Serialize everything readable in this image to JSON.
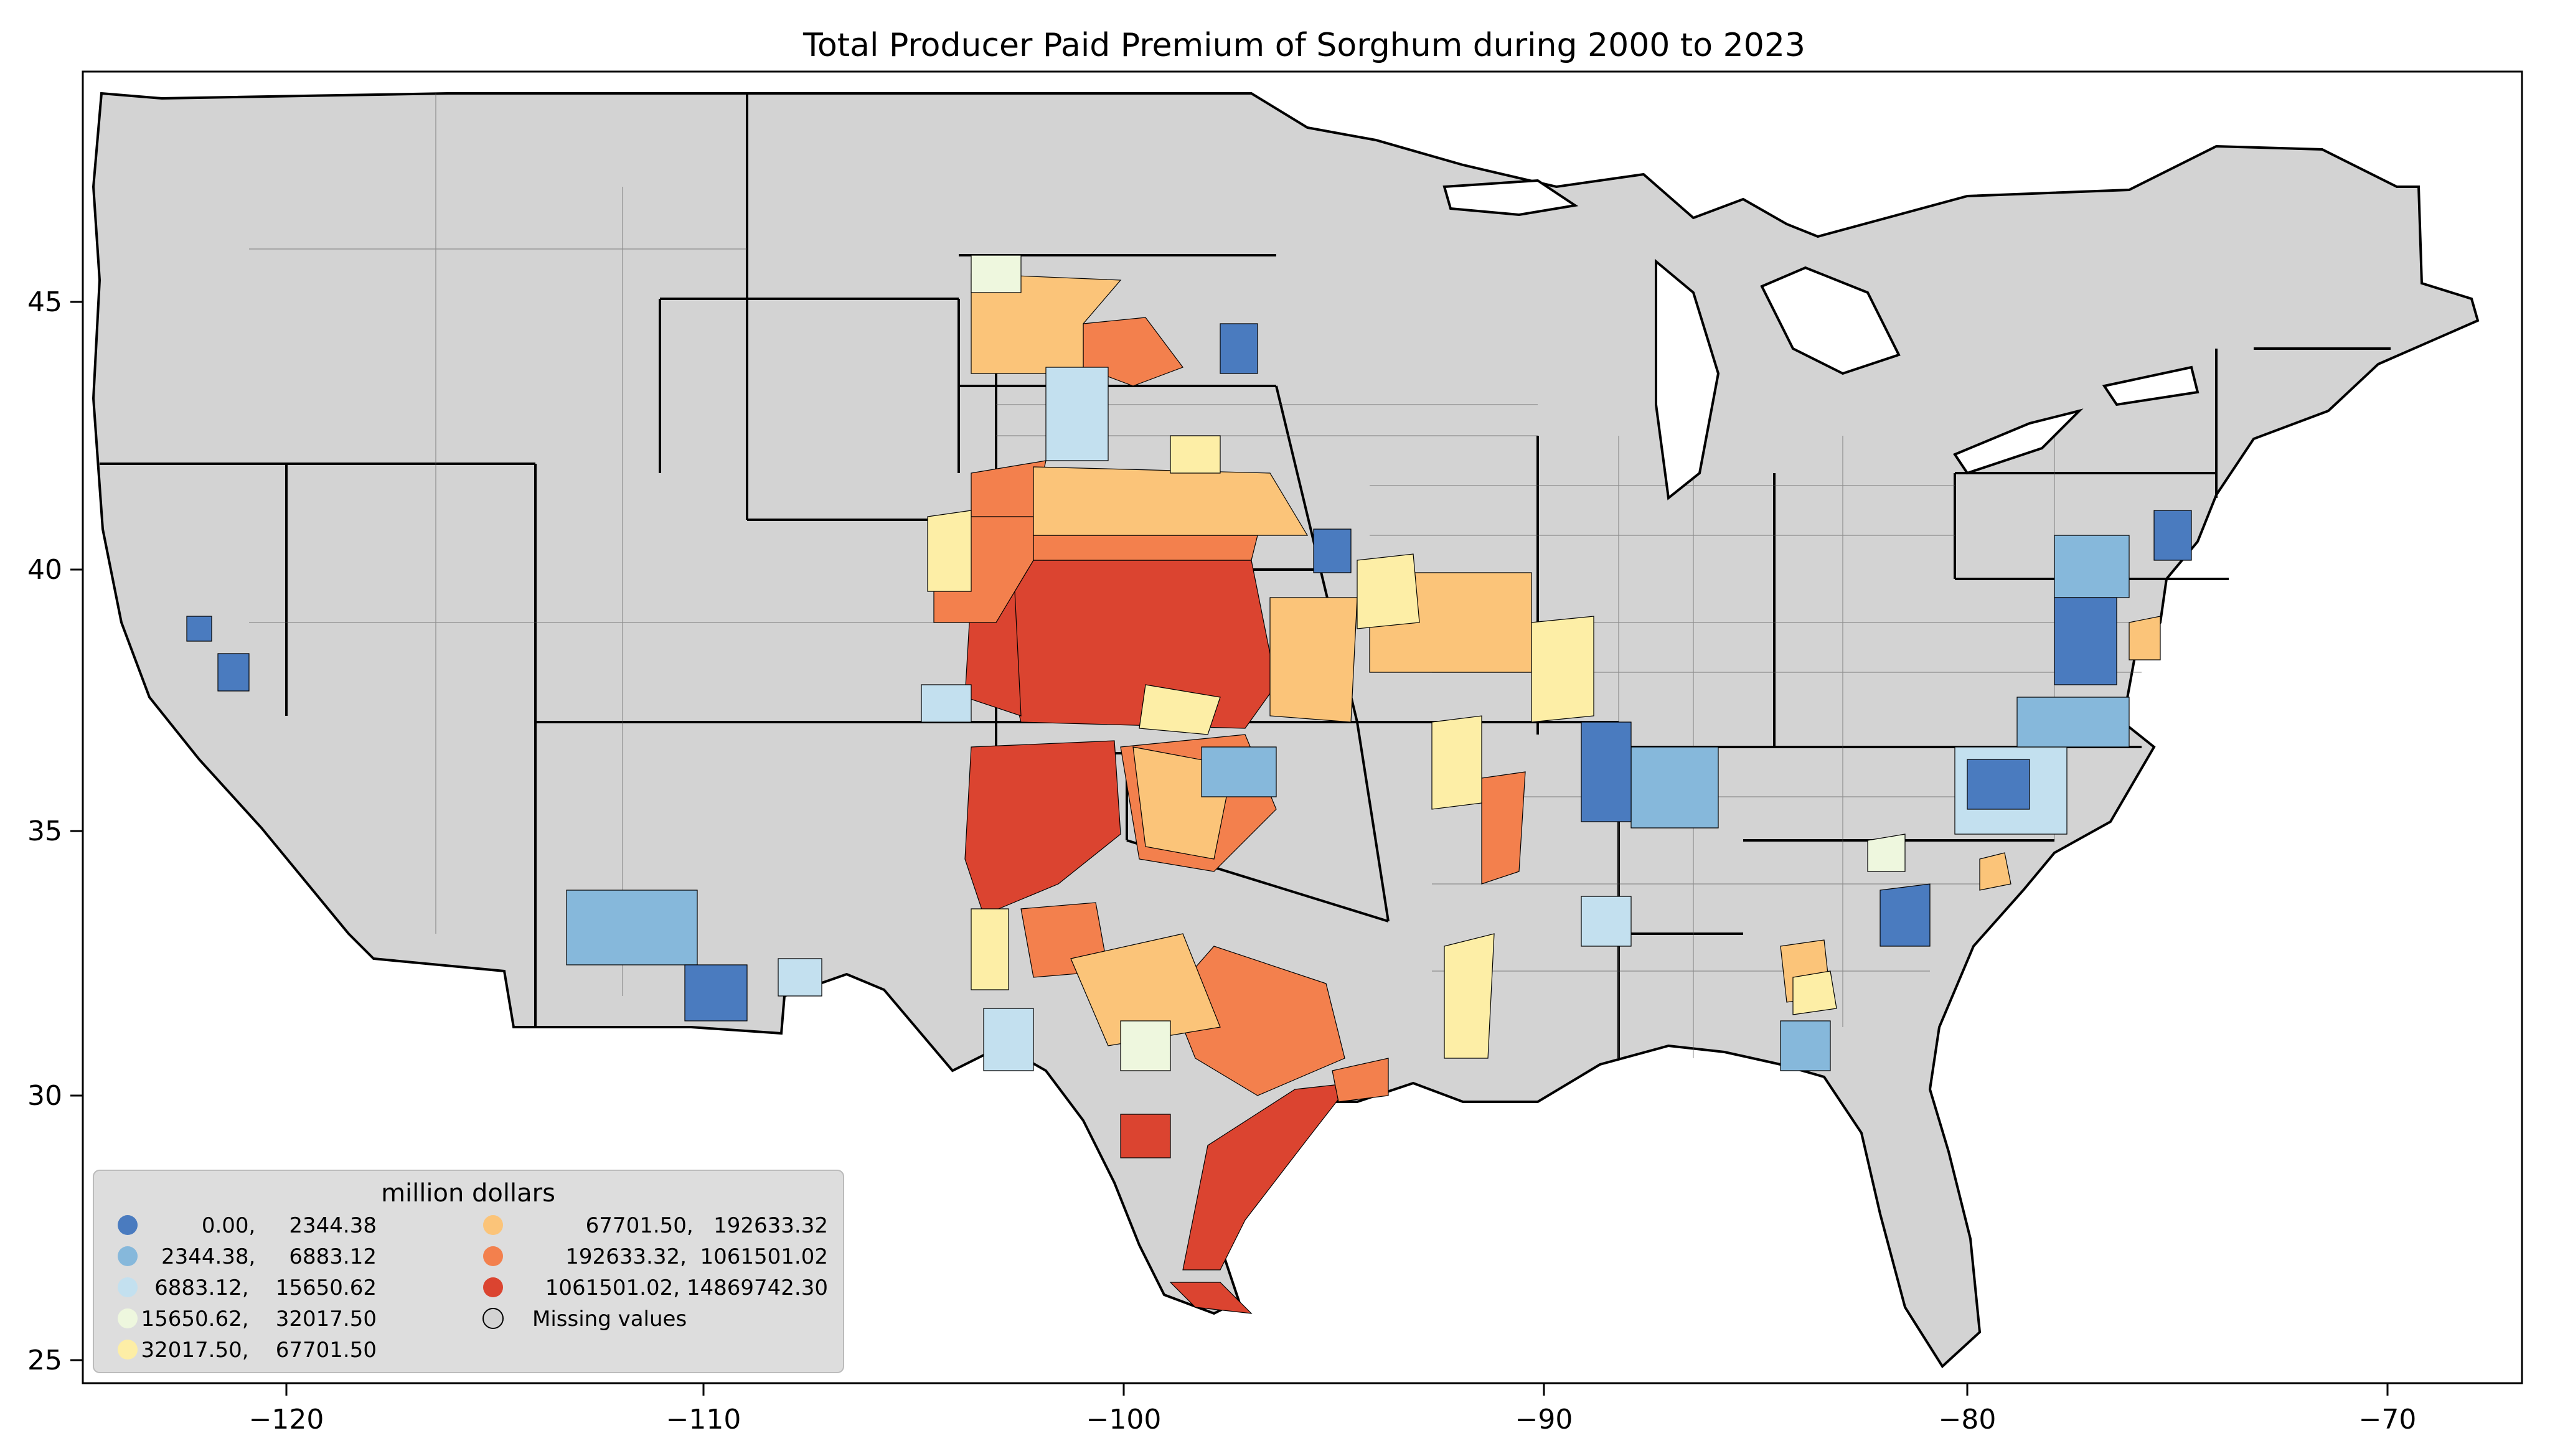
{
  "title": "Total Producer Paid Premium of Sorghum during 2000 to 2023",
  "axes": {
    "x_ticks": [
      "−120",
      "−110",
      "−100",
      "−90",
      "−80",
      "−70"
    ],
    "y_ticks": [
      "45",
      "40",
      "35",
      "30",
      "25"
    ],
    "x_range": [
      -124.8,
      -66.5
    ],
    "y_range": [
      24.4,
      49.5
    ]
  },
  "legend": {
    "title": "million dollars",
    "placement": "lower-left",
    "items": [
      {
        "label": "0.00,     2344.38",
        "color": "#4a7bbf"
      },
      {
        "label": "2344.38,     6883.12",
        "color": "#86b8db"
      },
      {
        "label": "6883.12,    15650.62",
        "color": "#c3e0ef"
      },
      {
        "label": "15650.62,    32017.50",
        "color": "#eef7de"
      },
      {
        "label": "32017.50,    67701.50",
        "color": "#fdeea6"
      },
      {
        "label": "67701.50,   192633.32",
        "color": "#fbc479"
      },
      {
        "label": "192633.32,  1061501.02",
        "color": "#f3804d"
      },
      {
        "label": "1061501.02, 14869742.30",
        "color": "#db4430"
      },
      {
        "label": "Missing values",
        "color": "#d3d3d3"
      }
    ]
  },
  "colors": {
    "land": "#d3d3d3",
    "border": "#000000"
  }
}
